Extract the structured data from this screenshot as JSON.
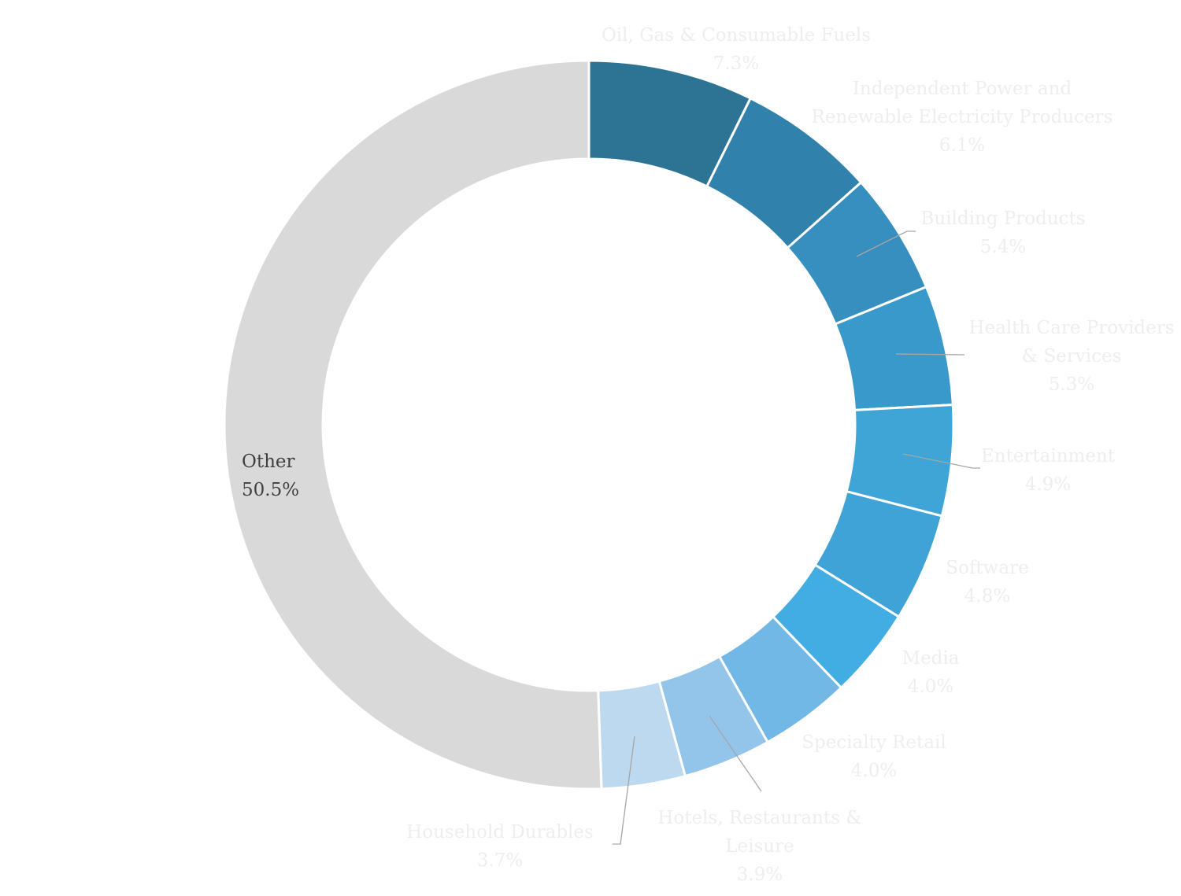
{
  "chart_data": {
    "type": "pie",
    "variant": "donut",
    "title": "",
    "legend": "none",
    "slices": [
      {
        "label": "Oil, Gas & Consumable Fuels",
        "value": 7.3,
        "value_label": "7.3%",
        "color": "#2d7394"
      },
      {
        "label": "Independent Power and Renewable Electricity Producers",
        "value": 6.1,
        "value_label": "6.1%",
        "color": "#3081ab"
      },
      {
        "label": "Building Products",
        "value": 5.4,
        "value_label": "5.4%",
        "color": "#378fbf"
      },
      {
        "label": "Health Care Providers & Services",
        "value": 5.3,
        "value_label": "5.3%",
        "color": "#3a99cb"
      },
      {
        "label": "Entertainment",
        "value": 4.9,
        "value_label": "4.9%",
        "color": "#3fa4d6"
      },
      {
        "label": "Software",
        "value": 4.8,
        "value_label": "4.8%",
        "color": "#3fa3d7"
      },
      {
        "label": "Media",
        "value": 4.0,
        "value_label": "4.0%",
        "color": "#41ade2"
      },
      {
        "label": "Specialty Retail",
        "value": 4.0,
        "value_label": "4.0%",
        "color": "#72b8e6"
      },
      {
        "label": "Hotels, Restaurants & Leisure",
        "value": 3.9,
        "value_label": "3.9%",
        "color": "#93c4ea"
      },
      {
        "label": "Household Durables",
        "value": 3.7,
        "value_label": "3.7%",
        "color": "#bcd9f0"
      },
      {
        "label": "Other",
        "value": 50.5,
        "value_label": "50.5%",
        "color": "#d9d9d9"
      }
    ]
  }
}
